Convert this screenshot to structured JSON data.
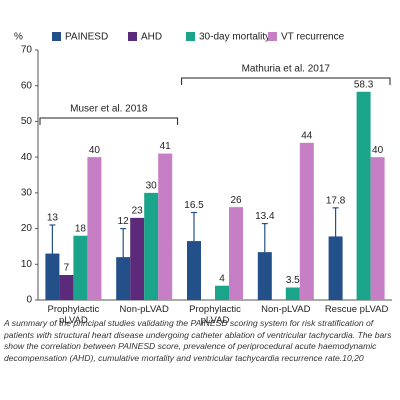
{
  "chart_data": {
    "type": "bar",
    "y_label": "%",
    "categories": [
      "Prophylactic\npLVAD",
      "Non-pLVAD",
      "Prophylactic\npLVAD",
      "Non-pLVAD",
      "Rescue pLVAD"
    ],
    "series": [
      {
        "name": "PAINESD",
        "color": "#24508a",
        "values": [
          13,
          12,
          16.5,
          13.4,
          17.8
        ],
        "errors": [
          8,
          8,
          8,
          8,
          8
        ]
      },
      {
        "name": "AHD",
        "color": "#5b2a7a",
        "values": [
          7,
          23,
          null,
          null,
          null
        ]
      },
      {
        "name": "30-day mortality",
        "color": "#1aa58a",
        "values": [
          18,
          30,
          4,
          3.5,
          58.3
        ]
      },
      {
        "name": "VT recurrence",
        "color": "#c67fc4",
        "values": [
          40,
          41,
          26,
          44,
          40
        ]
      }
    ],
    "ylim": [
      0,
      70
    ],
    "yticks": [
      0,
      10,
      20,
      30,
      40,
      50,
      60,
      70
    ],
    "grid": false,
    "annotations": [
      "Muser et al. 2018",
      "Mathuria et al. 2017"
    ]
  },
  "caption": "A summary of the principal studies validating the PAINESD scoring system for risk stratification of patients with structural heart disease undergoing catheter ablation of ventricular tachycardia. The bars show the correlation between PAINESD score, prevalence of periprocedural acute haemodynamic decompensation (AHD), cumulative mortality and ventricular tachycardia recurrence rate.10,20"
}
